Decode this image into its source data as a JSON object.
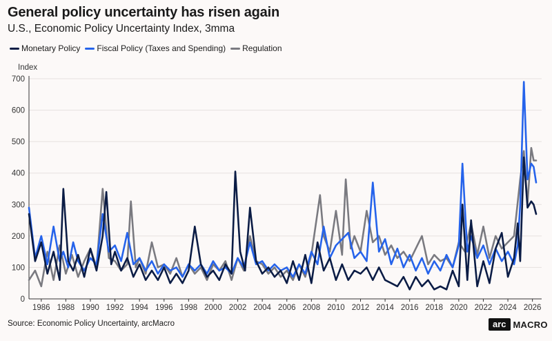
{
  "title": "General policy uncertainty has risen again",
  "subtitle": "U.S., Economic Policy Uncertainty Index, 3mma",
  "source": "Source: Economic Policy Uncertainty, arcMacro",
  "logo": {
    "mark": "arc",
    "word": "MACRO"
  },
  "chart_data": {
    "type": "line",
    "title": "General policy uncertainty has risen again",
    "ylabel": "Index",
    "xlabel": "",
    "ylim": [
      0,
      700
    ],
    "xlim": [
      1985.0,
      2026.75
    ],
    "yticks": [
      0,
      100,
      200,
      300,
      400,
      500,
      600,
      700
    ],
    "xticks": [
      1986,
      1988,
      1990,
      1992,
      1994,
      1996,
      1998,
      2000,
      2002,
      2004,
      2006,
      2008,
      2010,
      2012,
      2014,
      2016,
      2018,
      2020,
      2022,
      2024,
      2026
    ],
    "legend_position": "top-left",
    "series": [
      {
        "name": "Monetary Policy",
        "color": "#0b1c45",
        "x": [
          1985.0,
          1985.5,
          1986.0,
          1986.5,
          1987.0,
          1987.5,
          1987.8,
          1988.2,
          1988.6,
          1989.0,
          1989.5,
          1990.0,
          1990.5,
          1991.0,
          1991.3,
          1991.7,
          1992.0,
          1992.5,
          1993.0,
          1993.5,
          1994.0,
          1994.5,
          1995.0,
          1995.5,
          1996.0,
          1996.5,
          1997.0,
          1997.5,
          1998.0,
          1998.5,
          1999.0,
          1999.5,
          2000.0,
          2000.5,
          2001.0,
          2001.5,
          2001.8,
          2002.2,
          2002.6,
          2003.0,
          2003.5,
          2004.0,
          2004.5,
          2005.0,
          2005.5,
          2006.0,
          2006.5,
          2007.0,
          2007.5,
          2008.0,
          2008.5,
          2009.0,
          2009.5,
          2010.0,
          2010.5,
          2011.0,
          2011.5,
          2012.0,
          2012.5,
          2013.0,
          2013.5,
          2014.0,
          2014.5,
          2015.0,
          2015.5,
          2016.0,
          2016.5,
          2017.0,
          2017.5,
          2018.0,
          2018.5,
          2019.0,
          2019.5,
          2020.0,
          2020.3,
          2020.7,
          2021.0,
          2021.5,
          2022.0,
          2022.5,
          2023.0,
          2023.5,
          2024.0,
          2024.5,
          2024.8,
          2025.0,
          2025.3,
          2025.6,
          2025.9,
          2026.1,
          2026.3
        ],
        "values": [
          270,
          120,
          180,
          80,
          150,
          60,
          350,
          120,
          90,
          140,
          70,
          160,
          90,
          200,
          340,
          110,
          150,
          90,
          130,
          70,
          110,
          60,
          90,
          60,
          100,
          50,
          80,
          50,
          90,
          230,
          110,
          70,
          90,
          60,
          110,
          80,
          405,
          150,
          90,
          290,
          120,
          80,
          100,
          70,
          90,
          50,
          120,
          60,
          140,
          50,
          180,
          90,
          130,
          60,
          110,
          60,
          90,
          80,
          100,
          60,
          100,
          60,
          50,
          40,
          70,
          30,
          70,
          40,
          60,
          30,
          40,
          30,
          90,
          40,
          300,
          60,
          250,
          40,
          120,
          50,
          160,
          210,
          70,
          130,
          240,
          120,
          450,
          290,
          310,
          300,
          270
        ]
      },
      {
        "name": "Fiscal Policy (Taxes and Spending)",
        "color": "#2563eb",
        "x": [
          1985.0,
          1985.5,
          1986.0,
          1986.5,
          1987.0,
          1987.5,
          1987.8,
          1988.2,
          1988.6,
          1989.0,
          1989.5,
          1990.0,
          1990.5,
          1991.0,
          1991.5,
          1992.0,
          1992.5,
          1993.0,
          1993.5,
          1994.0,
          1994.5,
          1995.0,
          1995.5,
          1996.0,
          1996.5,
          1997.0,
          1997.5,
          1998.0,
          1998.5,
          1999.0,
          1999.5,
          2000.0,
          2000.5,
          2001.0,
          2001.5,
          2002.0,
          2002.5,
          2003.0,
          2003.5,
          2004.0,
          2004.5,
          2005.0,
          2005.5,
          2006.0,
          2006.5,
          2007.0,
          2007.5,
          2008.0,
          2008.5,
          2009.0,
          2009.5,
          2010.0,
          2010.5,
          2011.0,
          2011.5,
          2012.0,
          2012.5,
          2013.0,
          2013.5,
          2014.0,
          2014.5,
          2015.0,
          2015.5,
          2016.0,
          2016.5,
          2017.0,
          2017.5,
          2018.0,
          2018.5,
          2019.0,
          2019.5,
          2020.0,
          2020.3,
          2020.7,
          2021.0,
          2021.5,
          2022.0,
          2022.5,
          2023.0,
          2023.5,
          2024.0,
          2024.5,
          2024.8,
          2025.0,
          2025.3,
          2025.6,
          2025.9,
          2026.1,
          2026.3
        ],
        "values": [
          290,
          130,
          200,
          110,
          230,
          120,
          150,
          100,
          180,
          120,
          90,
          130,
          110,
          270,
          150,
          170,
          120,
          210,
          110,
          130,
          90,
          120,
          80,
          110,
          90,
          100,
          70,
          110,
          90,
          110,
          80,
          120,
          90,
          100,
          80,
          130,
          100,
          180,
          110,
          120,
          90,
          110,
          90,
          100,
          70,
          110,
          80,
          150,
          110,
          230,
          130,
          170,
          190,
          210,
          130,
          150,
          120,
          370,
          150,
          190,
          110,
          160,
          100,
          140,
          90,
          130,
          80,
          120,
          90,
          140,
          100,
          170,
          430,
          150,
          200,
          130,
          170,
          110,
          160,
          120,
          150,
          110,
          170,
          300,
          690,
          380,
          430,
          420,
          370
        ]
      },
      {
        "name": "Regulation",
        "color": "#7a7a80",
        "x": [
          1985.0,
          1985.5,
          1986.0,
          1986.5,
          1987.0,
          1987.5,
          1988.0,
          1988.5,
          1989.0,
          1989.5,
          1990.0,
          1990.5,
          1991.0,
          1991.5,
          1992.0,
          1992.5,
          1993.0,
          1993.3,
          1993.7,
          1994.0,
          1994.5,
          1995.0,
          1995.5,
          1996.0,
          1996.5,
          1997.0,
          1997.5,
          1998.0,
          1998.5,
          1999.0,
          1999.5,
          2000.0,
          2000.5,
          2001.0,
          2001.5,
          2002.0,
          2002.5,
          2003.0,
          2003.5,
          2004.0,
          2004.5,
          2005.0,
          2005.5,
          2006.0,
          2006.5,
          2007.0,
          2007.5,
          2008.0,
          2008.7,
          2009.0,
          2009.5,
          2010.0,
          2010.5,
          2010.8,
          2011.2,
          2011.5,
          2012.0,
          2012.5,
          2013.0,
          2013.5,
          2014.0,
          2014.5,
          2015.0,
          2015.5,
          2016.0,
          2016.5,
          2017.0,
          2017.5,
          2018.0,
          2018.5,
          2019.0,
          2019.5,
          2020.0,
          2020.5,
          2021.0,
          2021.5,
          2022.0,
          2022.5,
          2023.0,
          2023.5,
          2024.0,
          2024.5,
          2025.0,
          2025.3,
          2025.6,
          2025.9,
          2026.1,
          2026.3
        ],
        "values": [
          60,
          90,
          40,
          150,
          60,
          170,
          80,
          140,
          70,
          120,
          160,
          100,
          350,
          130,
          120,
          90,
          110,
          310,
          100,
          130,
          80,
          180,
          100,
          110,
          80,
          130,
          70,
          110,
          80,
          100,
          60,
          110,
          90,
          120,
          60,
          130,
          90,
          200,
          120,
          110,
          80,
          100,
          70,
          90,
          60,
          110,
          70,
          140,
          330,
          200,
          150,
          280,
          140,
          380,
          160,
          200,
          150,
          280,
          180,
          200,
          140,
          170,
          130,
          150,
          120,
          160,
          200,
          110,
          140,
          120,
          130,
          100,
          180,
          150,
          240,
          140,
          230,
          130,
          200,
          160,
          180,
          200,
          380,
          470,
          300,
          480,
          440,
          440
        ]
      }
    ]
  }
}
